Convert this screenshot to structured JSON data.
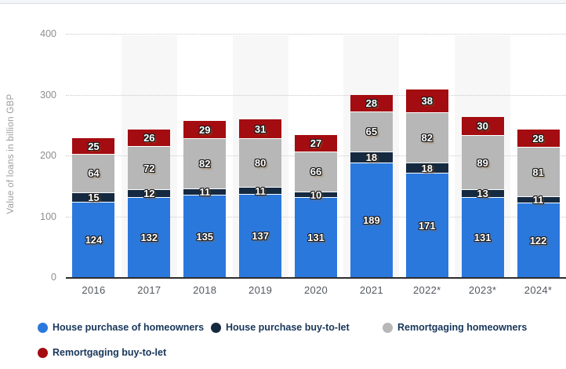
{
  "chart_data": {
    "type": "bar",
    "stacked": true,
    "ylabel": "Value of loans in billion GBP",
    "categories": [
      "2016",
      "2017",
      "2018",
      "2019",
      "2020",
      "2021",
      "2022*",
      "2023*",
      "2024*"
    ],
    "series": [
      {
        "name": "House purchase of homeowners",
        "color": "#2b78dd",
        "values": [
          124,
          132,
          135,
          137,
          131,
          189,
          171,
          131,
          122
        ]
      },
      {
        "name": "House purchase buy-to-let",
        "color": "#152a41",
        "values": [
          15,
          12,
          11,
          11,
          10,
          18,
          18,
          13,
          11
        ]
      },
      {
        "name": "Remortgaging homeowners",
        "color": "#b7b7b7",
        "values": [
          64,
          72,
          82,
          80,
          66,
          65,
          82,
          89,
          81
        ]
      },
      {
        "name": "Remortgaging buy-to-let",
        "color": "#a30c10",
        "values": [
          25,
          26,
          29,
          31,
          27,
          28,
          38,
          30,
          28
        ]
      }
    ],
    "ylim": [
      0,
      400
    ],
    "yticks": [
      0,
      100,
      200,
      300,
      400
    ],
    "grid": "horizontal-dotted",
    "band_color": "#f7f7f8",
    "legend_position": "bottom"
  }
}
